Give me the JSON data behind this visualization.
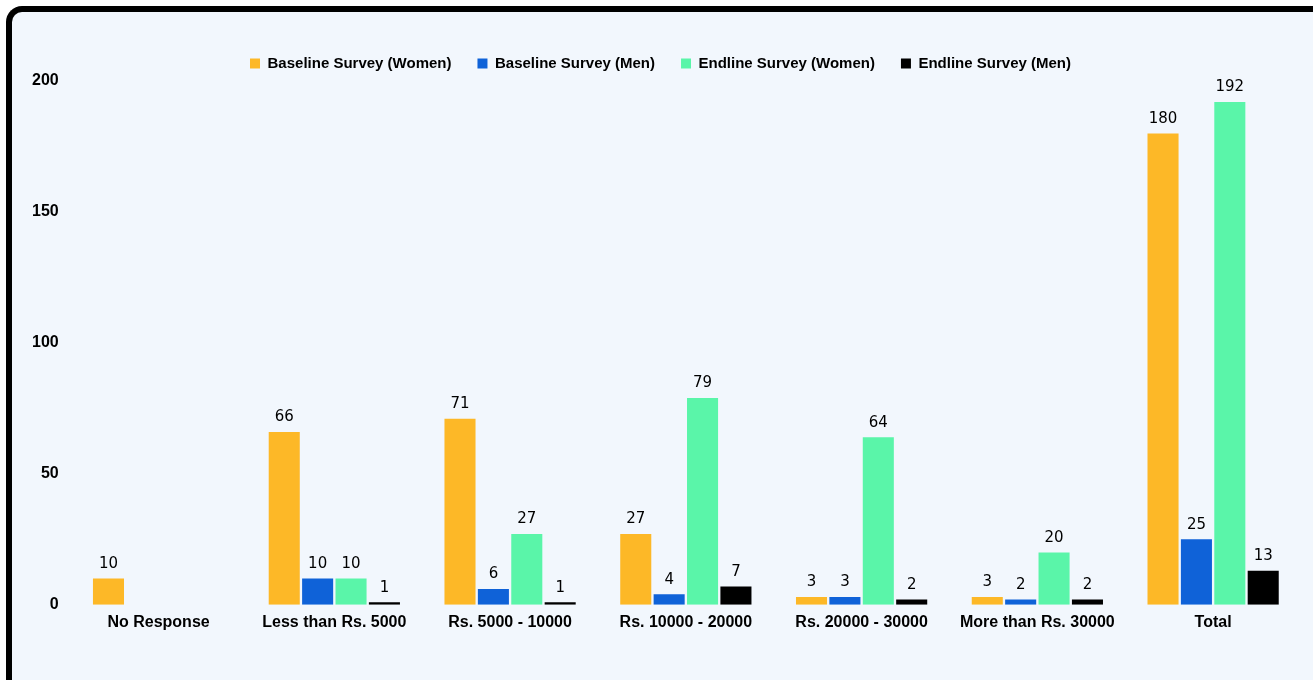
{
  "chart_data": {
    "type": "bar",
    "categories": [
      "No Response",
      "Less than Rs. 5000",
      "Rs. 5000 - 10000",
      "Rs. 10000 - 20000",
      "Rs. 20000 - 30000",
      "More than Rs. 30000",
      "Total"
    ],
    "series": [
      {
        "name": "Baseline Survey (Women)",
        "color": "#fdb827",
        "values": [
          10,
          66,
          71,
          27,
          3,
          3,
          180
        ]
      },
      {
        "name": "Baseline Survey (Men)",
        "color": "#0f62d8",
        "values": [
          null,
          10,
          6,
          4,
          3,
          2,
          25
        ]
      },
      {
        "name": "Endline Survey (Women)",
        "color": "#5af5a9",
        "values": [
          null,
          10,
          27,
          79,
          64,
          20,
          192
        ]
      },
      {
        "name": "Endline Survey (Men)",
        "color": "#000000",
        "values": [
          null,
          1,
          1,
          7,
          2,
          2,
          13
        ]
      }
    ],
    "ylim": [
      0,
      200
    ],
    "yticks": [
      0,
      50,
      100,
      150,
      200
    ],
    "grid": false,
    "legend": "top",
    "data_labels": true
  }
}
